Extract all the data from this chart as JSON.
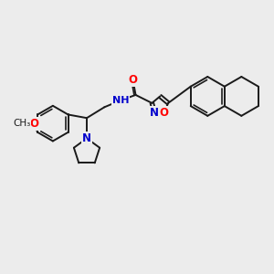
{
  "background_color": "#ececec",
  "bond_color": "#1a1a1a",
  "bond_width": 1.4,
  "atom_colors": {
    "O": "#ff0000",
    "N": "#0000cc",
    "C": "#1a1a1a"
  },
  "font_size_atom": 8.5,
  "layout": {
    "xlim": [
      0,
      10
    ],
    "ylim": [
      0,
      10
    ]
  }
}
